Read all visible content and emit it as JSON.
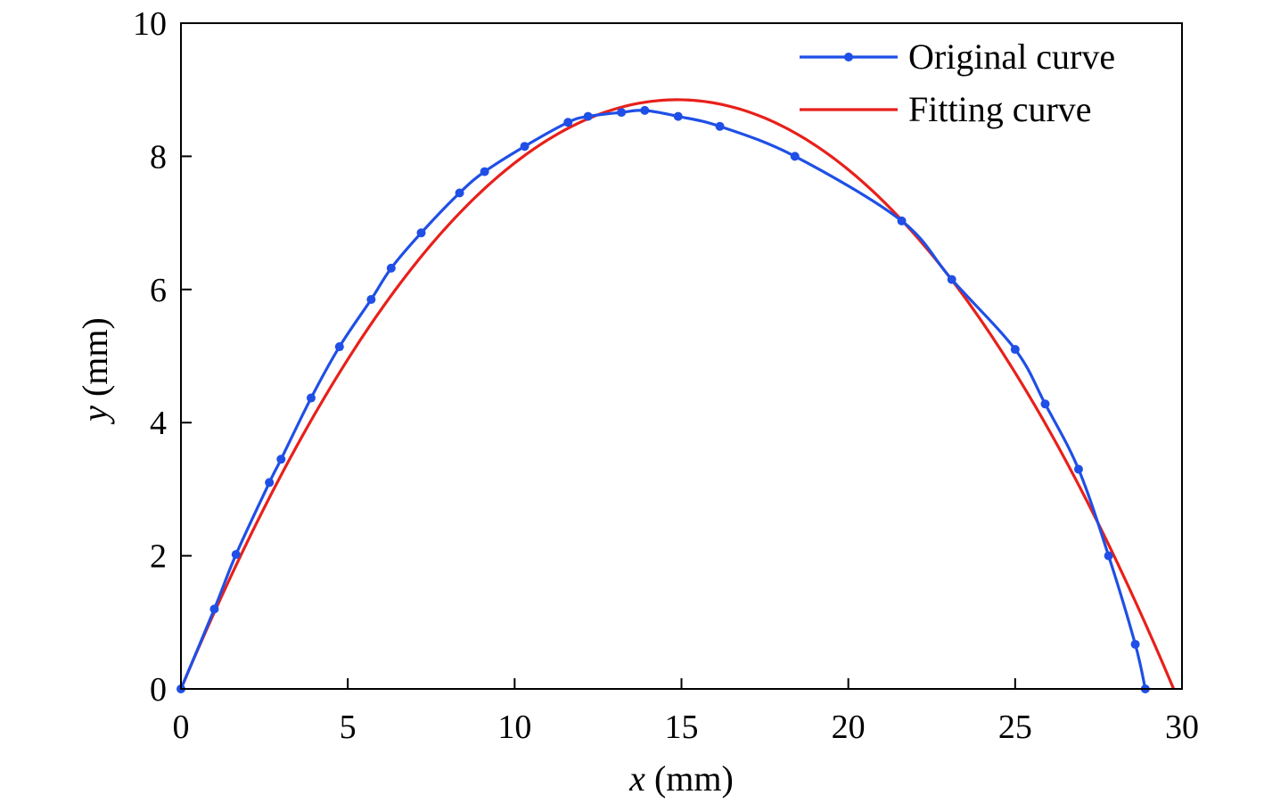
{
  "chart_data": {
    "type": "line",
    "title": "",
    "xlabel": {
      "var": "x",
      "unit": " (mm)"
    },
    "ylabel": {
      "var": "y",
      "unit": " (mm)"
    },
    "xlim": [
      0,
      30
    ],
    "ylim": [
      0,
      10
    ],
    "xticks": [
      "0",
      "5",
      "10",
      "15",
      "20",
      "25",
      "30"
    ],
    "yticks": [
      "0",
      "2",
      "4",
      "6",
      "8",
      "10"
    ],
    "grid": false,
    "legend_position": "top-right",
    "series": [
      {
        "name": "Original curve",
        "color": "#1f4fe6",
        "marker": "dot",
        "x": [
          0,
          1,
          1.65,
          2.65,
          3,
          3.9,
          4.75,
          5.7,
          6.3,
          7.2,
          8.35,
          9.1,
          10.3,
          11.6,
          12.2,
          13.2,
          13.9,
          14.9,
          16.15,
          18.4,
          21.6,
          23.1,
          25,
          25.9,
          26.9,
          27.8,
          28.6,
          28.9
        ],
        "y": [
          0,
          1.2,
          2.02,
          3.1,
          3.45,
          4.37,
          5.14,
          5.85,
          6.32,
          6.85,
          7.45,
          7.77,
          8.15,
          8.51,
          8.6,
          8.66,
          8.69,
          8.6,
          8.45,
          8.0,
          7.03,
          6.15,
          5.1,
          4.28,
          3.3,
          2.0,
          0.67,
          0
        ]
      },
      {
        "name": "Fitting curve",
        "color": "#e8201a",
        "marker": "none",
        "function": "parabola",
        "roots": [
          0,
          29.75
        ],
        "peak": [
          14.87,
          8.85
        ]
      }
    ]
  }
}
